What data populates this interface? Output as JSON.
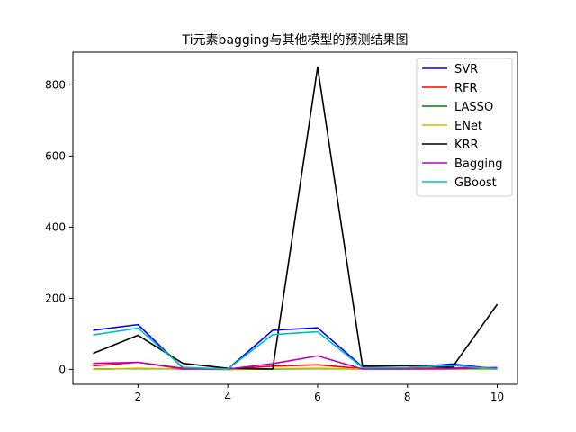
{
  "chart_data": {
    "type": "line",
    "title": "Ti元素bagging与其他模型的预测结果图",
    "xlabel": "",
    "ylabel": "",
    "x": [
      1,
      2,
      3,
      4,
      5,
      6,
      7,
      8,
      9,
      10
    ],
    "xlim": [
      0.55,
      10.45
    ],
    "ylim": [
      -42,
      892
    ],
    "xticks": [
      2,
      4,
      6,
      8,
      10
    ],
    "yticks": [
      0,
      200,
      400,
      600,
      800
    ],
    "grid": false,
    "legend_position": "top-right",
    "series": [
      {
        "name": "SVR",
        "color": "#0000ff",
        "values": [
          110,
          126,
          4,
          1,
          110,
          117,
          7,
          5,
          15,
          1
        ]
      },
      {
        "name": "RFR",
        "color": "#ff0000",
        "values": [
          10,
          20,
          3,
          1,
          9,
          13,
          2,
          3,
          4,
          5
        ]
      },
      {
        "name": "LASSO",
        "color": "#008000",
        "values": [
          1,
          2,
          1,
          0,
          1,
          2,
          1,
          1,
          1,
          1
        ]
      },
      {
        "name": "ENet",
        "color": "#bfbf00",
        "values": [
          0,
          3,
          1,
          0,
          2,
          3,
          1,
          1,
          2,
          1
        ]
      },
      {
        "name": "KRR",
        "color": "#000000",
        "values": [
          45,
          96,
          17,
          3,
          1,
          850,
          9,
          11,
          6,
          183
        ]
      },
      {
        "name": "Bagging",
        "color": "#bf00bf",
        "values": [
          17,
          20,
          1,
          1,
          16,
          38,
          1,
          1,
          2,
          5
        ]
      },
      {
        "name": "GBoost",
        "color": "#00bfbf",
        "values": [
          97,
          116,
          6,
          1,
          98,
          106,
          5,
          6,
          11,
          1
        ]
      }
    ]
  }
}
